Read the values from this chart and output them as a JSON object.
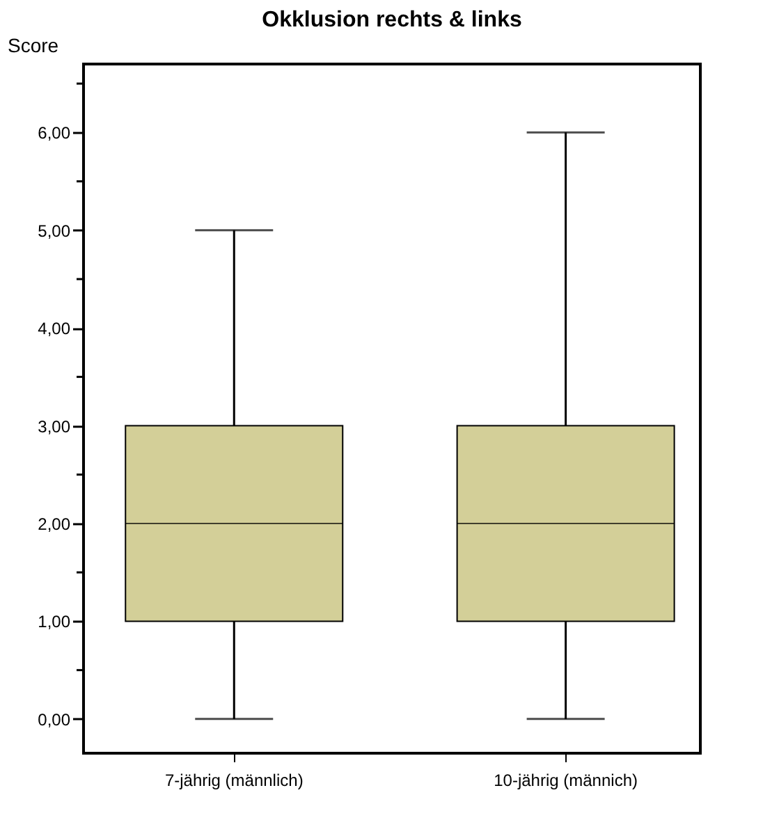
{
  "chart_data": {
    "type": "box",
    "title": "Okklusion rechts & links",
    "ylabel": "Score",
    "categories": [
      "7-jährig (männlich)",
      "10-jährig (männich)"
    ],
    "boxes": [
      {
        "low": 0,
        "q1": 1,
        "median": 2,
        "q3": 3,
        "high": 5
      },
      {
        "low": 0,
        "q1": 1,
        "median": 2,
        "q3": 3,
        "high": 6
      }
    ],
    "color": "#d3cf98",
    "ylim": [
      -0.35,
      6.7
    ],
    "yticks": [
      {
        "value": 0,
        "label": "0,00"
      },
      {
        "value": 0.5,
        "label": null
      },
      {
        "value": 1,
        "label": "1,00"
      },
      {
        "value": 1.5,
        "label": null
      },
      {
        "value": 2,
        "label": "2,00"
      },
      {
        "value": 2.5,
        "label": null
      },
      {
        "value": 3,
        "label": "3,00"
      },
      {
        "value": 3.5,
        "label": null
      },
      {
        "value": 4,
        "label": "4,00"
      },
      {
        "value": 4.5,
        "label": null
      },
      {
        "value": 5,
        "label": "5,00"
      },
      {
        "value": 5.5,
        "label": null
      },
      {
        "value": 6,
        "label": "6,00"
      },
      {
        "value": 6.5,
        "label": null
      }
    ]
  }
}
